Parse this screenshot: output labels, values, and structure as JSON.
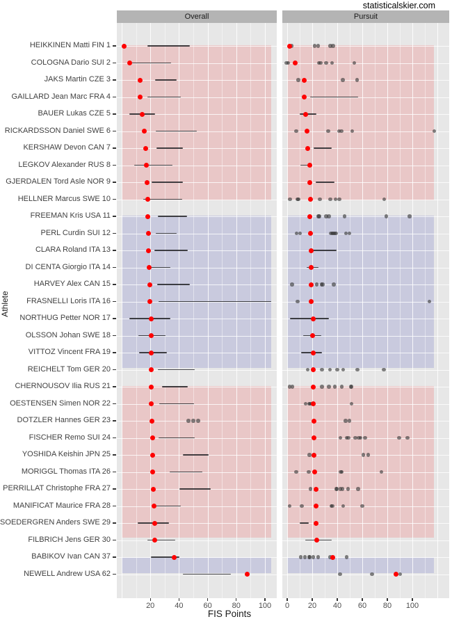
{
  "title": "statisticalskier.com",
  "colors": {
    "accent_red": "#fe0000",
    "dot_gray": "rgba(55,55,55,0.62)",
    "range_line": "rgba(25,25,28,0.82)",
    "band_pink": "#e9c7c7",
    "band_lavender": "#c9cade",
    "panel_bg": "#e7e7e7",
    "strip_bg": "#b4b4b4",
    "grid": "#ffffff"
  },
  "chart_data": {
    "type": "scatter",
    "title": "statisticalskier.com",
    "xlabel": "FIS Points",
    "ylabel": "Athlete",
    "legend": "none",
    "grid": "on",
    "panels": [
      {
        "label": "Overall",
        "tick_labels": [
          20,
          40,
          60,
          80,
          100
        ],
        "grid_major": [
          0,
          20,
          40,
          60,
          80,
          100
        ],
        "grid_minor": [
          10,
          30,
          50,
          70,
          90
        ],
        "xlim": [
          -3.5,
          108
        ],
        "band_max": 104.6
      },
      {
        "label": "Pursuit",
        "tick_labels": [
          0,
          20,
          40,
          60,
          80,
          100
        ],
        "grid_major": [
          0,
          20,
          40,
          60,
          80,
          100,
          120
        ],
        "grid_minor": [
          10,
          30,
          50,
          70,
          90,
          110
        ],
        "xlim": [
          -4,
          129
        ],
        "band_max": 117.3
      }
    ],
    "highlight_groups": [
      {
        "from_row": 1,
        "to_row": 10.05,
        "color_name": "pink"
      },
      {
        "from_row": 11,
        "to_row": 19.9,
        "color_name": "lavender"
      },
      {
        "from_row": 21,
        "to_row": 29.86,
        "color_name": "pink"
      },
      {
        "from_row": 31.1,
        "to_row": 31.93,
        "color_name": "lavender"
      }
    ],
    "athletes": [
      {
        "label": "HEIKKINEN Matti FIN 1",
        "overall": {
          "red": 1.5,
          "line": [
            18,
            47.5
          ]
        },
        "pursuit": {
          "red": 2.2,
          "dots": [
            3.5,
            22,
            24.7,
            34.4,
            36.7
          ]
        }
      },
      {
        "label": "COLOGNA Dario SUI 2",
        "overall": {
          "red": 5.8,
          "line": [
            7.3,
            34.5
          ]
        },
        "pursuit": {
          "red": 6.2,
          "dots": [
            -0.5,
            0.8,
            25.2,
            26.8,
            31,
            35.7,
            53.5
          ]
        }
      },
      {
        "label": "JAKS Martin CZE 3",
        "overall": {
          "red": 13,
          "line": [
            23.5,
            38.5
          ]
        },
        "pursuit": {
          "red": 13.4,
          "dots": [
            8.8,
            44.5,
            55.8
          ]
        }
      },
      {
        "label": "GAILLARD Jean Marc FRA 4",
        "overall": {
          "red": 13,
          "line": [
            17.8,
            41.3
          ]
        },
        "pursuit": {
          "red": 13.5,
          "line": [
            18.4,
            56.7
          ]
        }
      },
      {
        "label": "BAUER Lukas CZE 5",
        "overall": {
          "red": 14.5,
          "line": [
            5.3,
            23.5
          ]
        },
        "pursuit": {
          "red": 14.8,
          "line": [
            10.2,
            23.5
          ]
        }
      },
      {
        "label": "RICKARDSSON Daniel SWE 6",
        "overall": {
          "red": 15.9,
          "line": [
            23.6,
            52.3
          ]
        },
        "pursuit": {
          "red": 16,
          "dots": [
            7.2,
            32.9,
            41.3,
            43.2,
            51.9,
            117.5
          ]
        }
      },
      {
        "label": "KERSHAW Devon CAN 7",
        "overall": {
          "red": 16.7,
          "line": [
            24.3,
            42.9
          ]
        },
        "pursuit": {
          "red": 16.5,
          "line": [
            20.9,
            35.4
          ]
        }
      },
      {
        "label": "LEGKOV Alexander RUS 8",
        "overall": {
          "red": 17.3,
          "line": [
            8.7,
            35.4
          ]
        },
        "pursuit": {
          "red": 17.9,
          "line": [
            10.4,
            18.3
          ]
        }
      },
      {
        "label": "GJERDALEN Tord Asle NOR 9",
        "overall": {
          "red": 17.8,
          "line": [
            20.7,
            42.9
          ]
        },
        "pursuit": {
          "red": 17.9,
          "line": [
            22.8,
            37.8
          ]
        }
      },
      {
        "label": "HELLNER Marcus SWE 10",
        "overall": {
          "red": 18.3,
          "line": [
            15,
            42.1
          ]
        },
        "pursuit": {
          "red": 18.7,
          "dots": [
            2.2,
            8.2,
            8.8,
            26.1,
            34.4,
            38.5,
            41.8,
            77.6
          ]
        }
      },
      {
        "label": "FREEMAN Kris USA 11",
        "overall": {
          "red": 18.3,
          "line": [
            25,
            45.6
          ]
        },
        "pursuit": {
          "red": 18.2,
          "dots": [
            25,
            25.5,
            31.1,
            33.2,
            45.9,
            79.3,
            97.8
          ]
        }
      },
      {
        "label": "PERL Curdin SUI 12",
        "overall": {
          "red": 18.8,
          "line": [
            23.9,
            38.5
          ]
        },
        "pursuit": {
          "red": 18.7,
          "dots": [
            7.6,
            10.4,
            34.8,
            35.8,
            36.8,
            37.8,
            38.8,
            47,
            49.6
          ]
        }
      },
      {
        "label": "CLARA Roland ITA 13",
        "overall": {
          "red": 18.8,
          "line": [
            22.7,
            46.1
          ]
        },
        "pursuit": {
          "red": 19.1,
          "line": [
            20.2,
            39.4
          ]
        }
      },
      {
        "label": "DI CENTA Giorgio ITA 14",
        "overall": {
          "red": 19.3,
          "line": [
            17.8,
            34
          ]
        },
        "pursuit": {
          "red": 19.1,
          "line": [
            15.4,
            25.2
          ]
        }
      },
      {
        "label": "HARVEY Alex CAN 15",
        "overall": {
          "red": 19.6,
          "line": [
            24.8,
            47.7
          ]
        },
        "pursuit": {
          "red": 19.2,
          "dots": [
            3.9,
            23.5,
            27.6,
            28.2,
            37.2
          ]
        }
      },
      {
        "label": "FRASNELLI Loris ITA 16",
        "overall": {
          "red": 19.6,
          "line": [
            25.9,
            104.4
          ]
        },
        "pursuit": {
          "red": 19.3,
          "dots": [
            8.2,
            113.7
          ]
        }
      },
      {
        "label": "NORTHUG Petter NOR 17",
        "overall": {
          "red": 20.4,
          "line": [
            5.2,
            34
          ]
        },
        "pursuit": {
          "red": 20.6,
          "line": [
            2,
            33.2
          ]
        }
      },
      {
        "label": "OLSSON Johan SWE 18",
        "overall": {
          "red": 20.5,
          "line": [
            11.8,
            30.4
          ]
        },
        "pursuit": {
          "red": 20,
          "line": [
            12.6,
            27.4
          ]
        }
      },
      {
        "label": "VITTOZ Vincent FRA 19",
        "overall": {
          "red": 20.5,
          "line": [
            12.1,
            31.6
          ]
        },
        "pursuit": {
          "red": 20.6,
          "line": [
            10.9,
            27.9
          ]
        }
      },
      {
        "label": "REICHELT Tom GER 20",
        "overall": {
          "red": 20.5,
          "line": [
            25.1,
            51
          ]
        },
        "pursuit": {
          "red": 21.1,
          "dots": [
            16.5,
            27.9,
            34.1,
            40,
            44.6,
            56.1,
            77.1
          ]
        }
      },
      {
        "label": "CHERNOUSOV Ilia RUS 21",
        "overall": {
          "red": 20.7,
          "line": [
            28,
            46.1
          ]
        },
        "pursuit": {
          "red": 21.1,
          "dots": [
            2,
            4.3,
            27.9,
            33.3,
            38,
            43.7,
            50.8,
            51.4
          ]
        }
      },
      {
        "label": "OESTENSEN Simen NOR 22",
        "overall": {
          "red": 20.7,
          "line": [
            26.2,
            50.6
          ]
        },
        "pursuit": {
          "red": 21,
          "dots": [
            14.8,
            17.5,
            18.1,
            19.3,
            51.5
          ]
        }
      },
      {
        "label": "DOTZLER Hannes GER 23",
        "overall": {
          "red": 21.2,
          "dots": [
            46.6,
            49.9,
            53.4
          ]
        },
        "pursuit": {
          "red": 21.5,
          "dots": [
            46.8,
            49.8
          ]
        }
      },
      {
        "label": "FISCHER Remo SUI 24",
        "overall": {
          "red": 21.5,
          "line": [
            25.6,
            51
          ]
        },
        "pursuit": {
          "red": 21.5,
          "dots": [
            42.4,
            47.4,
            48.9,
            54.4,
            57.2,
            58.7,
            62.2,
            89.4,
            96.1
          ]
        }
      },
      {
        "label": "YOSHIDA Keishin JPN 25",
        "overall": {
          "red": 21.8,
          "line": [
            42.9,
            60.7
          ]
        },
        "pursuit": {
          "red": 21.5,
          "dots": [
            17.8,
            60.7,
            64.6
          ]
        }
      },
      {
        "label": "MORIGGL Thomas ITA 26",
        "overall": {
          "red": 21.5,
          "line": [
            33.5,
            56.3
          ]
        },
        "pursuit": {
          "red": 22,
          "dots": [
            7.2,
            17.2,
            42.9,
            43.5,
            75.2
          ]
        }
      },
      {
        "label": "PERRILLAT Christophe FRA 27",
        "overall": {
          "red": 22.2,
          "line": [
            40.5,
            62
          ]
        },
        "pursuit": {
          "red": 23,
          "dots": [
            18.7,
            39.1,
            39.7,
            42.4,
            44.1,
            48.7,
            56.7
          ]
        }
      },
      {
        "label": "MANIFICAT Maurice FRA 28",
        "overall": {
          "red": 22.7,
          "line": [
            23,
            41.3
          ]
        },
        "pursuit": {
          "red": 23,
          "dots": [
            2,
            11.7,
            35.4,
            36,
            44.6,
            60
          ]
        }
      },
      {
        "label": "SOEDERGREN Anders SWE 29",
        "overall": {
          "red": 23,
          "line": [
            11.3,
            32.9
          ]
        },
        "pursuit": {
          "red": 23.3,
          "line": [
            9.8,
            17.2
          ]
        }
      },
      {
        "label": "FILBRICH Jens GER 30",
        "overall": {
          "red": 23.3,
          "line": [
            17.8,
            37.5
          ]
        },
        "pursuit": {
          "red": 23.5,
          "line": [
            14.4,
            35.4
          ]
        }
      },
      {
        "label": "BABIKOV Ivan CAN 37",
        "overall": {
          "red": 36.6,
          "line": [
            20.5,
            40.5
          ]
        },
        "pursuit": {
          "red": 36.3,
          "dots": [
            10.7,
            14.1,
            17.5,
            18.1,
            20.9,
            24.8,
            34.4,
            47.4
          ]
        }
      },
      {
        "label": "NEWELL Andrew USA 62",
        "overall": {
          "red": 87.4,
          "line": [
            42.9,
            76.1
          ]
        },
        "pursuit": {
          "red": 86.9,
          "dots": [
            42.2,
            67.8,
            90.4
          ]
        }
      }
    ]
  }
}
